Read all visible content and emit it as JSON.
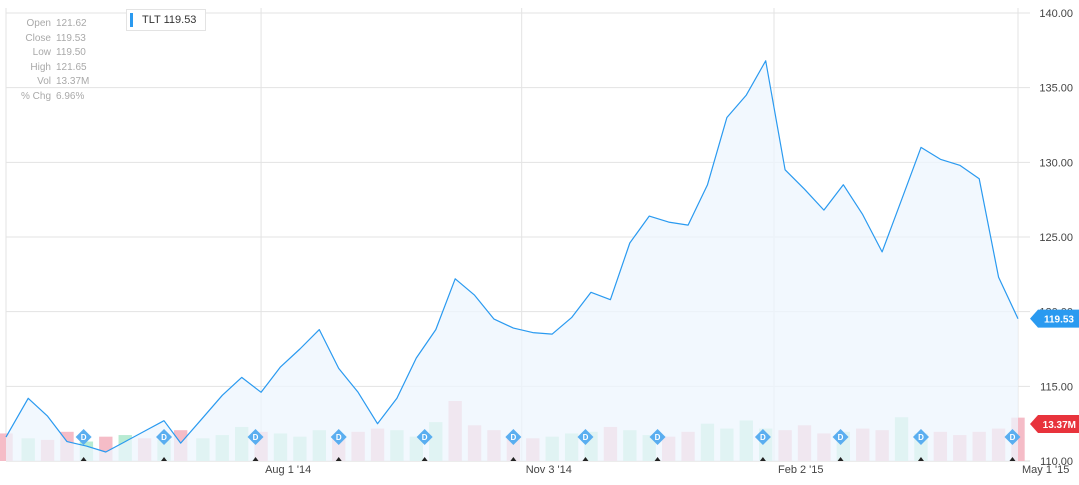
{
  "ticker": "TLT",
  "legend_label": "TLT 119.53",
  "info": [
    {
      "label": "Open",
      "value": "121.62"
    },
    {
      "label": "Close",
      "value": "119.53"
    },
    {
      "label": "Low",
      "value": "119.50"
    },
    {
      "label": "High",
      "value": "121.65"
    },
    {
      "label": "Vol",
      "value": "13.37M"
    },
    {
      "label": "% Chg",
      "value": "6.96%"
    }
  ],
  "colors": {
    "line": "#2a9af0",
    "area": "#eef6fd",
    "vol_up": "#b8ebd3",
    "vol_down": "#f5bcc7",
    "dividend": "#5aaef0",
    "last_price_tag": "#2a9af0",
    "last_volume_tag": "#e8333c",
    "grid": "#e3e3e3"
  },
  "chart_data": {
    "type": "line",
    "x": [
      "2014-05-01",
      "2014-05-09",
      "2014-05-16",
      "2014-05-23",
      "2014-05-30",
      "2014-06-06",
      "2014-06-13",
      "2014-06-20",
      "2014-06-27",
      "2014-07-03",
      "2014-07-11",
      "2014-07-18",
      "2014-07-25",
      "2014-08-01",
      "2014-08-08",
      "2014-08-15",
      "2014-08-22",
      "2014-08-29",
      "2014-09-05",
      "2014-09-12",
      "2014-09-19",
      "2014-09-26",
      "2014-10-03",
      "2014-10-10",
      "2014-10-17",
      "2014-10-24",
      "2014-10-31",
      "2014-11-07",
      "2014-11-14",
      "2014-11-21",
      "2014-11-28",
      "2014-12-05",
      "2014-12-12",
      "2014-12-19",
      "2014-12-26",
      "2015-01-02",
      "2015-01-09",
      "2015-01-16",
      "2015-01-23",
      "2015-01-30",
      "2015-02-06",
      "2015-02-13",
      "2015-02-20",
      "2015-02-27",
      "2015-03-06",
      "2015-03-13",
      "2015-03-20",
      "2015-03-27",
      "2015-04-03",
      "2015-04-10",
      "2015-04-17",
      "2015-04-24",
      "2015-05-01"
    ],
    "series": [
      {
        "values": [
          111.6,
          114.2,
          113.0,
          111.3,
          111.0,
          110.6,
          111.3,
          112.0,
          112.7,
          111.2,
          112.9,
          114.4,
          115.6,
          114.6,
          116.3,
          117.5,
          118.8,
          116.2,
          114.6,
          112.5,
          114.2,
          116.9,
          118.8,
          122.2,
          121.1,
          119.5,
          118.9,
          118.6,
          118.5,
          119.6,
          121.3,
          120.8,
          124.6,
          126.4,
          126.0,
          125.8,
          128.5,
          133.0,
          134.5,
          136.8,
          129.5,
          128.2,
          126.8,
          128.5,
          126.5,
          124.0,
          127.5,
          131.0,
          130.2,
          129.8,
          128.9,
          122.3,
          119.53
        ]
      }
    ],
    "volume_unit": "M",
    "volume": [
      8.5,
      7.0,
      6.5,
      9.0,
      6.0,
      7.5,
      8.0,
      7.0,
      6.5,
      9.5,
      7.0,
      8.0,
      10.5,
      9.0,
      8.5,
      7.5,
      9.5,
      8.0,
      9.0,
      10.0,
      9.5,
      7.5,
      12.0,
      18.5,
      11.0,
      9.5,
      8.0,
      7.0,
      7.5,
      8.5,
      9.0,
      10.5,
      9.5,
      8.0,
      7.5,
      9.0,
      11.5,
      10.0,
      12.5,
      10.0,
      9.5,
      11.0,
      8.5,
      9.0,
      10.0,
      9.5,
      13.5,
      8.5,
      9.0,
      8.0,
      9.0,
      10.0,
      13.37
    ],
    "volume_up": [
      false,
      true,
      false,
      false,
      true,
      false,
      true,
      false,
      true,
      false,
      true,
      true,
      true,
      false,
      true,
      true,
      true,
      false,
      false,
      false,
      true,
      true,
      true,
      false,
      false,
      false,
      false,
      false,
      true,
      true,
      true,
      false,
      true,
      true,
      false,
      false,
      true,
      true,
      true,
      true,
      false,
      false,
      false,
      true,
      false,
      false,
      true,
      true,
      false,
      false,
      false,
      false,
      false
    ],
    "dividends": [
      "2014-05-29",
      "2014-06-27",
      "2014-07-30",
      "2014-08-29",
      "2014-09-29",
      "2014-10-31",
      "2014-11-26",
      "2014-12-22",
      "2015-01-29",
      "2015-02-26",
      "2015-03-27",
      "2015-04-29"
    ],
    "y_ticks": [
      "110.00",
      "115.00",
      "120.00",
      "125.00",
      "130.00",
      "135.00",
      "140.00"
    ],
    "ylim": [
      110,
      140
    ],
    "x_tick_labels": [
      {
        "label": "Aug 1 '14",
        "date": "2014-08-01"
      },
      {
        "label": "Nov 3 '14",
        "date": "2014-11-03"
      },
      {
        "label": "Feb 2 '15",
        "date": "2015-02-02"
      },
      {
        "label": "May 1 '15",
        "date": "2015-05-01"
      }
    ],
    "last_price_label": "119.53",
    "last_volume_label": "13.37M",
    "dividend_marker": "D",
    "grid": true,
    "legend_position": "top-left"
  }
}
